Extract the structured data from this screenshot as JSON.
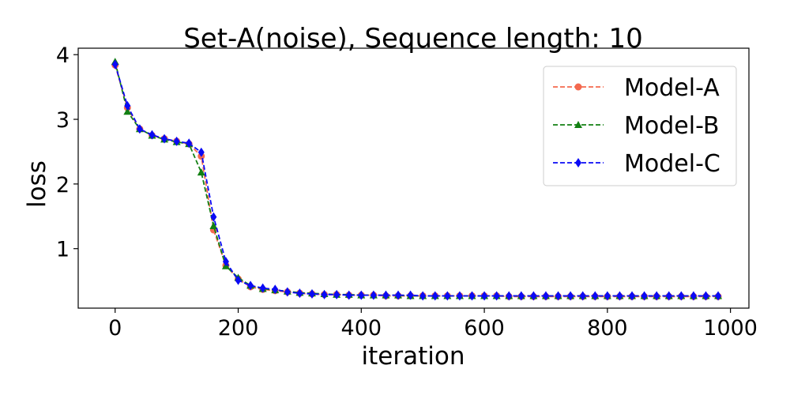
{
  "chart_data": {
    "type": "line",
    "title": "Set-A(noise), Sequence length: 10",
    "xlabel": "iteration",
    "ylabel": "loss",
    "xlim": [
      -60,
      1030
    ],
    "ylim": [
      0.08,
      4.1
    ],
    "xticks": [
      0,
      200,
      400,
      600,
      800,
      1000
    ],
    "yticks": [
      1,
      2,
      3,
      4
    ],
    "grid": false,
    "legend_position": "top-right",
    "x": [
      0,
      20,
      40,
      60,
      80,
      100,
      120,
      140,
      160,
      180,
      200,
      220,
      240,
      260,
      280,
      300,
      320,
      340,
      360,
      380,
      400,
      420,
      440,
      460,
      480,
      500,
      520,
      540,
      560,
      580,
      600,
      620,
      640,
      660,
      680,
      700,
      720,
      740,
      760,
      780,
      800,
      820,
      840,
      860,
      880,
      900,
      920,
      940,
      960,
      980
    ],
    "series": [
      {
        "name": "Model-A",
        "color": "#f4694f",
        "marker": "circle",
        "values": [
          3.84,
          3.18,
          2.85,
          2.75,
          2.7,
          2.66,
          2.62,
          2.43,
          1.29,
          0.74,
          0.53,
          0.41,
          0.37,
          0.35,
          0.33,
          0.31,
          0.3,
          0.29,
          0.29,
          0.28,
          0.28,
          0.28,
          0.27,
          0.27,
          0.27,
          0.27,
          0.27,
          0.27,
          0.27,
          0.27,
          0.27,
          0.27,
          0.26,
          0.26,
          0.26,
          0.26,
          0.26,
          0.26,
          0.26,
          0.26,
          0.26,
          0.26,
          0.26,
          0.26,
          0.26,
          0.26,
          0.26,
          0.26,
          0.26,
          0.26
        ]
      },
      {
        "name": "Model-B",
        "color": "#138013",
        "marker": "triangle",
        "values": [
          3.89,
          3.12,
          2.85,
          2.75,
          2.69,
          2.65,
          2.62,
          2.18,
          1.35,
          0.73,
          0.55,
          0.43,
          0.38,
          0.36,
          0.34,
          0.32,
          0.31,
          0.3,
          0.29,
          0.29,
          0.28,
          0.28,
          0.28,
          0.28,
          0.27,
          0.27,
          0.27,
          0.27,
          0.27,
          0.27,
          0.27,
          0.27,
          0.27,
          0.27,
          0.27,
          0.27,
          0.27,
          0.27,
          0.27,
          0.27,
          0.27,
          0.27,
          0.27,
          0.27,
          0.27,
          0.27,
          0.27,
          0.27,
          0.27,
          0.27
        ]
      },
      {
        "name": "Model-C",
        "color": "#0a0af5",
        "marker": "diamond",
        "values": [
          3.85,
          3.21,
          2.85,
          2.76,
          2.7,
          2.66,
          2.63,
          2.49,
          1.49,
          0.8,
          0.51,
          0.43,
          0.39,
          0.37,
          0.33,
          0.31,
          0.3,
          0.29,
          0.29,
          0.28,
          0.28,
          0.28,
          0.28,
          0.28,
          0.28,
          0.27,
          0.27,
          0.27,
          0.27,
          0.27,
          0.27,
          0.27,
          0.27,
          0.27,
          0.27,
          0.27,
          0.27,
          0.27,
          0.27,
          0.27,
          0.27,
          0.27,
          0.27,
          0.27,
          0.27,
          0.27,
          0.27,
          0.27,
          0.27,
          0.27
        ]
      }
    ]
  }
}
